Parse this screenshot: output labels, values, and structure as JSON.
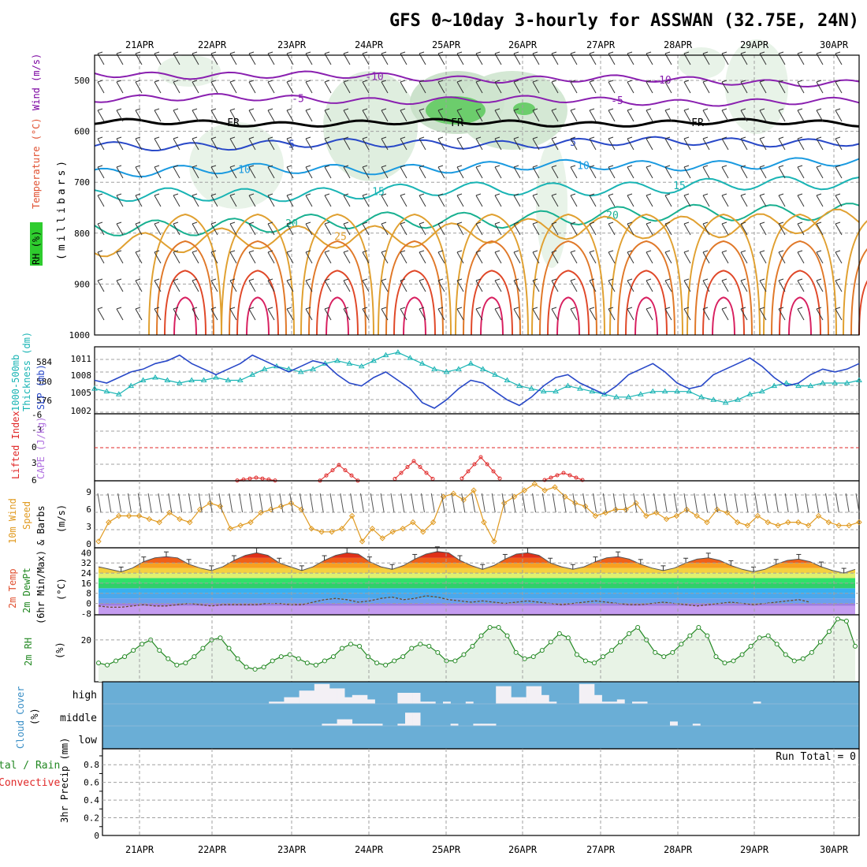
{
  "title": "GFS 0~10day 3-hourly for ASSWAN (32.75E, 24N)",
  "dates": [
    "21APR",
    "22APR",
    "23APR",
    "24APR",
    "25APR",
    "26APR",
    "27APR",
    "28APR",
    "29APR",
    "30APR"
  ],
  "colors": {
    "grid": "#a0a0a0",
    "frame": "#000000",
    "rh_band": "#2ecc2e",
    "temp_title": "#e05030",
    "wind_title": "#7a00a0",
    "thick": "#19b4b4",
    "slp": "#2848c8",
    "li": "#e02828",
    "cape": "#b070e0",
    "speed": "#e09a20",
    "rh2m": "#228822",
    "cloud": "#6aaed6",
    "cloud_gap": "#f3f0f5",
    "precip_total": "#228822",
    "precip_conv": "#e02828"
  },
  "panels": {
    "upper": {
      "label_rh": "RH (%)",
      "label_temp": "Temperature (°C)",
      "label_wind": "Wind (m/s)",
      "label_mb": "(millibars)",
      "yticks": [
        "500",
        "600",
        "700",
        "800",
        "900",
        "1000"
      ]
    },
    "thickness": {
      "label_thick": "1000-500mb",
      "label_thick2": "Thickness (dm)",
      "label_slp": "SLP (mb)",
      "left_ticks": [
        "584",
        "580",
        "576"
      ],
      "right_ticks": [
        "1011",
        "1008",
        "1005",
        "1002"
      ]
    },
    "stability": {
      "label_li": "Lifted Index",
      "label_cape": "CAPE (J/kg)",
      "left_ticks": [
        "-6",
        "-3",
        "0",
        "3",
        "6"
      ]
    },
    "wind10": {
      "label1": "10m Wind",
      "label2": "Speed",
      "label3": "& Barbs",
      "label_unit": "(m/s)",
      "ticks": [
        "9",
        "6",
        "3",
        "0"
      ]
    },
    "temp2m": {
      "label1": "2m Temp",
      "label2": "2m DewPt",
      "label3": "(6hr Min/Max)",
      "label_unit": "(°C)",
      "ticks": [
        "40",
        "32",
        "24",
        "16",
        "8",
        "0",
        "-8"
      ]
    },
    "rh2m": {
      "label1": "2m RH",
      "label_unit": "(%)",
      "ticks": [
        "20"
      ]
    },
    "cloud": {
      "label1": "Cloud Cover",
      "label_unit": "(%)",
      "levels": [
        "high",
        "middle",
        "low"
      ]
    },
    "precip": {
      "label_total": "tal / Rain",
      "label_conv": "Convective",
      "label_axis": "3hr Precip (mm)",
      "ticks": [
        "0.8",
        "0.6",
        "0.4",
        "0.2",
        "0"
      ],
      "run_total": "Run Total = 0"
    }
  },
  "chart_data": [
    {
      "type": "line",
      "name_key": "upper",
      "isotherm_labels": [
        "-10",
        "-5",
        "FR",
        "5",
        "10",
        "15",
        "20",
        "25"
      ],
      "isotherms_C": [
        -10,
        -5,
        0,
        5,
        10,
        15,
        20,
        25,
        30,
        35,
        40
      ],
      "ylim_mb": [
        1000,
        450
      ]
    },
    {
      "type": "line",
      "series": [
        {
          "name": "1000-500mb Thickness (dm)",
          "values": [
            578.5,
            578,
            577.5,
            579,
            580,
            580.5,
            580,
            579.5,
            580,
            580,
            580.5,
            580,
            580,
            581,
            582,
            582.5,
            582,
            581.5,
            582,
            583,
            583.5,
            583,
            582.5,
            583.5,
            584.5,
            585,
            584,
            583,
            582,
            581.5,
            582,
            583,
            582,
            581,
            580,
            579,
            578.5,
            578,
            578,
            579,
            578.5,
            578,
            577.5,
            577,
            577,
            577.5,
            578,
            578,
            578,
            578,
            577,
            576.5,
            576,
            576.5,
            577.5,
            578,
            579,
            579.5,
            579,
            579,
            579.5,
            579.5,
            579.5,
            580
          ]
        },
        {
          "name": "SLP (mb)",
          "values": [
            1007,
            1006.5,
            1007.5,
            1008.5,
            1009,
            1010,
            1010.5,
            1011.5,
            1010,
            1009,
            1008,
            1009,
            1010,
            1011.5,
            1010.5,
            1009.5,
            1008.5,
            1009.5,
            1010.5,
            1010,
            1008,
            1006.5,
            1006,
            1007.5,
            1008.5,
            1007,
            1005.5,
            1003,
            1002,
            1003.5,
            1005.5,
            1007,
            1006.5,
            1005,
            1003.5,
            1002.5,
            1004,
            1006,
            1007.5,
            1008,
            1006.5,
            1005.5,
            1004.5,
            1006,
            1008,
            1009,
            1010,
            1008.5,
            1006.5,
            1005.5,
            1006,
            1008,
            1009,
            1010,
            1011,
            1009.5,
            1007.5,
            1006,
            1006.5,
            1008,
            1009,
            1008.5,
            1009,
            1010
          ]
        }
      ]
    },
    {
      "type": "line",
      "series": [
        {
          "name": "Lifted Index",
          "x_index": [
            20,
            21,
            22,
            23,
            24,
            25,
            26,
            27,
            28,
            29,
            30,
            31,
            32,
            33,
            34,
            35,
            36,
            37
          ],
          "values": [
            6,
            6,
            6,
            4,
            3,
            3.5,
            6,
            6,
            6,
            4.5,
            4,
            3.5,
            3.5,
            3,
            5,
            6,
            6,
            5
          ]
        }
      ]
    },
    {
      "type": "line",
      "series": [
        {
          "name": "10m Wind Speed (m/s)",
          "values": [
            1,
            4,
            5,
            5,
            5,
            4.5,
            4,
            5.5,
            4.5,
            4,
            6,
            7,
            6.5,
            3,
            3.5,
            4,
            5.5,
            6,
            6.5,
            7,
            6,
            3,
            2.5,
            2.5,
            3,
            5,
            1,
            3,
            1.5,
            2.5,
            3,
            4,
            2.5,
            4,
            8,
            8.5,
            7.5,
            9,
            4,
            1,
            7,
            8,
            9,
            10,
            9,
            9.5,
            8,
            7,
            6.5,
            5,
            5.5,
            6,
            6,
            7,
            5,
            5.5,
            4.5,
            5,
            6,
            5,
            4,
            6,
            5.5,
            4,
            3.5,
            5,
            4,
            3.5,
            4,
            4,
            3.5,
            5,
            4,
            3.5,
            3.5,
            4
          ]
        }
      ]
    },
    {
      "type": "area",
      "series": [
        {
          "name": "2m Temp (°C)",
          "values": [
            29,
            27,
            25,
            28,
            33,
            36,
            37,
            36,
            31,
            28,
            26,
            29,
            34,
            38,
            40,
            38,
            32,
            29,
            26,
            29,
            34,
            38,
            40,
            39,
            33,
            29,
            27,
            30,
            35,
            39,
            41,
            40,
            34,
            30,
            27,
            30,
            35,
            39,
            40,
            38,
            32,
            29,
            27,
            29,
            33,
            36,
            37,
            35,
            31,
            28,
            26,
            28,
            32,
            35,
            36,
            34,
            30,
            27,
            25,
            27,
            31,
            34,
            35,
            33,
            29,
            26,
            24,
            27
          ]
        },
        {
          "name": "2m DewPt (°C)",
          "values": [
            -2,
            -3,
            -3,
            -2,
            -1,
            -2,
            -2,
            -1,
            0,
            -1,
            -2,
            -1,
            -1,
            -1,
            -1,
            0,
            0,
            -1,
            -1,
            1,
            3,
            4,
            3,
            1,
            2,
            4,
            5,
            3,
            4,
            6,
            5,
            3,
            2,
            1,
            2,
            1,
            0,
            1,
            2,
            1,
            0,
            -1,
            0,
            1,
            2,
            1,
            0,
            -1,
            -1,
            0,
            1,
            0,
            -1,
            -2,
            -1,
            0,
            1,
            0,
            -1,
            0,
            1,
            2,
            3,
            1
          ]
        }
      ]
    },
    {
      "type": "area",
      "series": [
        {
          "name": "2m RH (%)",
          "values": [
            9,
            8,
            10,
            12,
            15,
            18,
            20,
            15,
            11,
            8,
            9,
            12,
            16,
            20,
            21,
            16,
            11,
            7,
            6,
            7,
            10,
            12,
            13,
            11,
            9,
            8,
            10,
            12,
            16,
            18,
            17,
            12,
            9,
            8,
            10,
            12,
            16,
            18,
            17,
            14,
            10,
            10,
            13,
            17,
            22,
            26,
            26,
            22,
            14,
            11,
            12,
            15,
            19,
            23,
            21,
            13,
            10,
            9,
            12,
            15,
            19,
            23,
            26,
            20,
            14,
            12,
            14,
            18,
            22,
            26,
            22,
            12,
            9,
            10,
            13,
            17,
            21,
            22,
            18,
            13,
            10,
            11,
            14,
            19,
            24,
            30,
            29,
            17
          ]
        }
      ]
    },
    {
      "type": "heatmap",
      "levels": [
        "high",
        "middle",
        "low"
      ],
      "note": "high/middle/low cloud cover columns, 0-100%",
      "high": [
        0,
        0,
        0,
        0,
        0,
        0,
        0,
        0,
        0,
        0,
        0,
        0,
        0,
        0,
        0,
        0,
        0,
        0,
        0,
        0,
        0,
        0,
        10,
        10,
        30,
        30,
        60,
        60,
        90,
        90,
        70,
        70,
        30,
        40,
        40,
        20,
        0,
        0,
        0,
        50,
        50,
        50,
        10,
        10,
        0,
        10,
        0,
        0,
        10,
        0,
        0,
        0,
        80,
        80,
        30,
        30,
        80,
        80,
        40,
        10,
        0,
        0,
        0,
        90,
        90,
        40,
        10,
        10,
        20,
        0,
        10,
        10,
        0,
        0,
        0,
        0,
        0,
        0,
        0,
        0,
        0,
        0,
        0,
        0,
        0,
        0,
        10,
        0,
        0,
        0,
        0,
        0,
        0,
        0,
        0,
        0,
        0,
        0,
        0,
        0
      ],
      "middle": [
        0,
        0,
        0,
        0,
        0,
        0,
        0,
        0,
        0,
        0,
        0,
        0,
        0,
        0,
        0,
        0,
        0,
        0,
        0,
        0,
        0,
        0,
        0,
        0,
        0,
        0,
        0,
        0,
        0,
        10,
        10,
        30,
        30,
        10,
        10,
        10,
        10,
        0,
        0,
        10,
        60,
        60,
        0,
        0,
        0,
        0,
        10,
        0,
        0,
        10,
        10,
        10,
        0,
        0,
        0,
        0,
        0,
        0,
        0,
        0,
        0,
        0,
        0,
        0,
        0,
        0,
        0,
        0,
        0,
        0,
        0,
        0,
        0,
        0,
        0,
        20,
        0,
        0,
        10,
        0,
        0,
        0,
        0,
        0,
        0,
        0,
        0,
        0,
        0,
        0,
        0,
        0,
        0,
        0,
        0,
        0,
        0,
        0
      ],
      "low": []
    },
    {
      "type": "bar",
      "series": [
        {
          "name": "3hr Precip (mm)",
          "values": []
        }
      ],
      "ylim": [
        0,
        1
      ]
    }
  ]
}
